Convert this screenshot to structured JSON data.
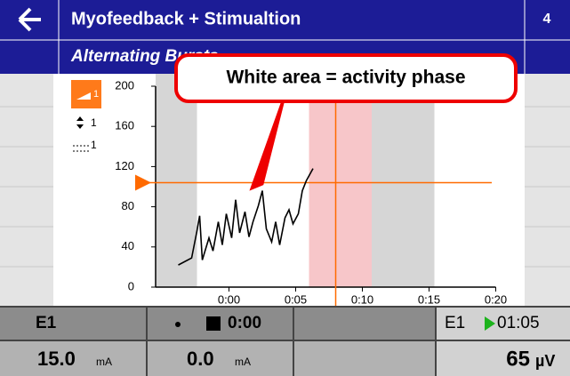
{
  "header": {
    "title": "Myofeedback + Stimualtion",
    "page": "4",
    "subtitle": "Alternating Bursts"
  },
  "sidebar": {
    "gain": 1,
    "scale": 1,
    "average": 1
  },
  "callout": "White area = activity phase",
  "chart_data": {
    "type": "line",
    "xlim": [
      -5.5,
      20
    ],
    "ylim": [
      0,
      200
    ],
    "yticks": [
      0,
      40,
      80,
      120,
      160,
      200
    ],
    "xticks": [
      {
        "value": 0,
        "label": "0:00"
      },
      {
        "value": 5,
        "label": "0:05"
      },
      {
        "value": 10,
        "label": "0:10"
      },
      {
        "value": 15,
        "label": "0:15"
      },
      {
        "value": 20,
        "label": "0:20"
      }
    ],
    "phases": [
      {
        "start": -5.5,
        "end": -2.4,
        "color": "#d6d6d6"
      },
      {
        "start": 6,
        "end": 10.7,
        "color": "#f7c6c9"
      },
      {
        "start": 10.7,
        "end": 15.4,
        "color": "#d6d6d6"
      }
    ],
    "threshold": 104,
    "cursor": 8,
    "threshold_color": "#ff6a00",
    "color": "#000000",
    "x": [
      -3.8,
      -2.8,
      -2.4,
      -2.2,
      -2.0,
      -1.5,
      -1.2,
      -0.8,
      -0.5,
      -0.2,
      0.2,
      0.5,
      0.8,
      1.2,
      1.5,
      1.8,
      2.2,
      2.5,
      2.8,
      3.2,
      3.5,
      3.8,
      4.2,
      4.5,
      4.8,
      5.2,
      5.5,
      5.8,
      6.3
    ],
    "values": [
      22,
      29,
      56,
      71,
      27,
      49,
      36,
      65,
      42,
      73,
      49,
      87,
      54,
      75,
      50,
      65,
      81,
      96,
      58,
      45,
      65,
      42,
      69,
      77,
      63,
      73,
      96,
      106,
      118
    ]
  },
  "status": {
    "channel": "E1",
    "timer": "0:00",
    "channel2": "E1",
    "elapsed": "01:05",
    "current1": "15.0",
    "unit1": "mA",
    "current2": "0.0",
    "unit2": "mA",
    "emg": "65",
    "emg_unit": "µV"
  }
}
